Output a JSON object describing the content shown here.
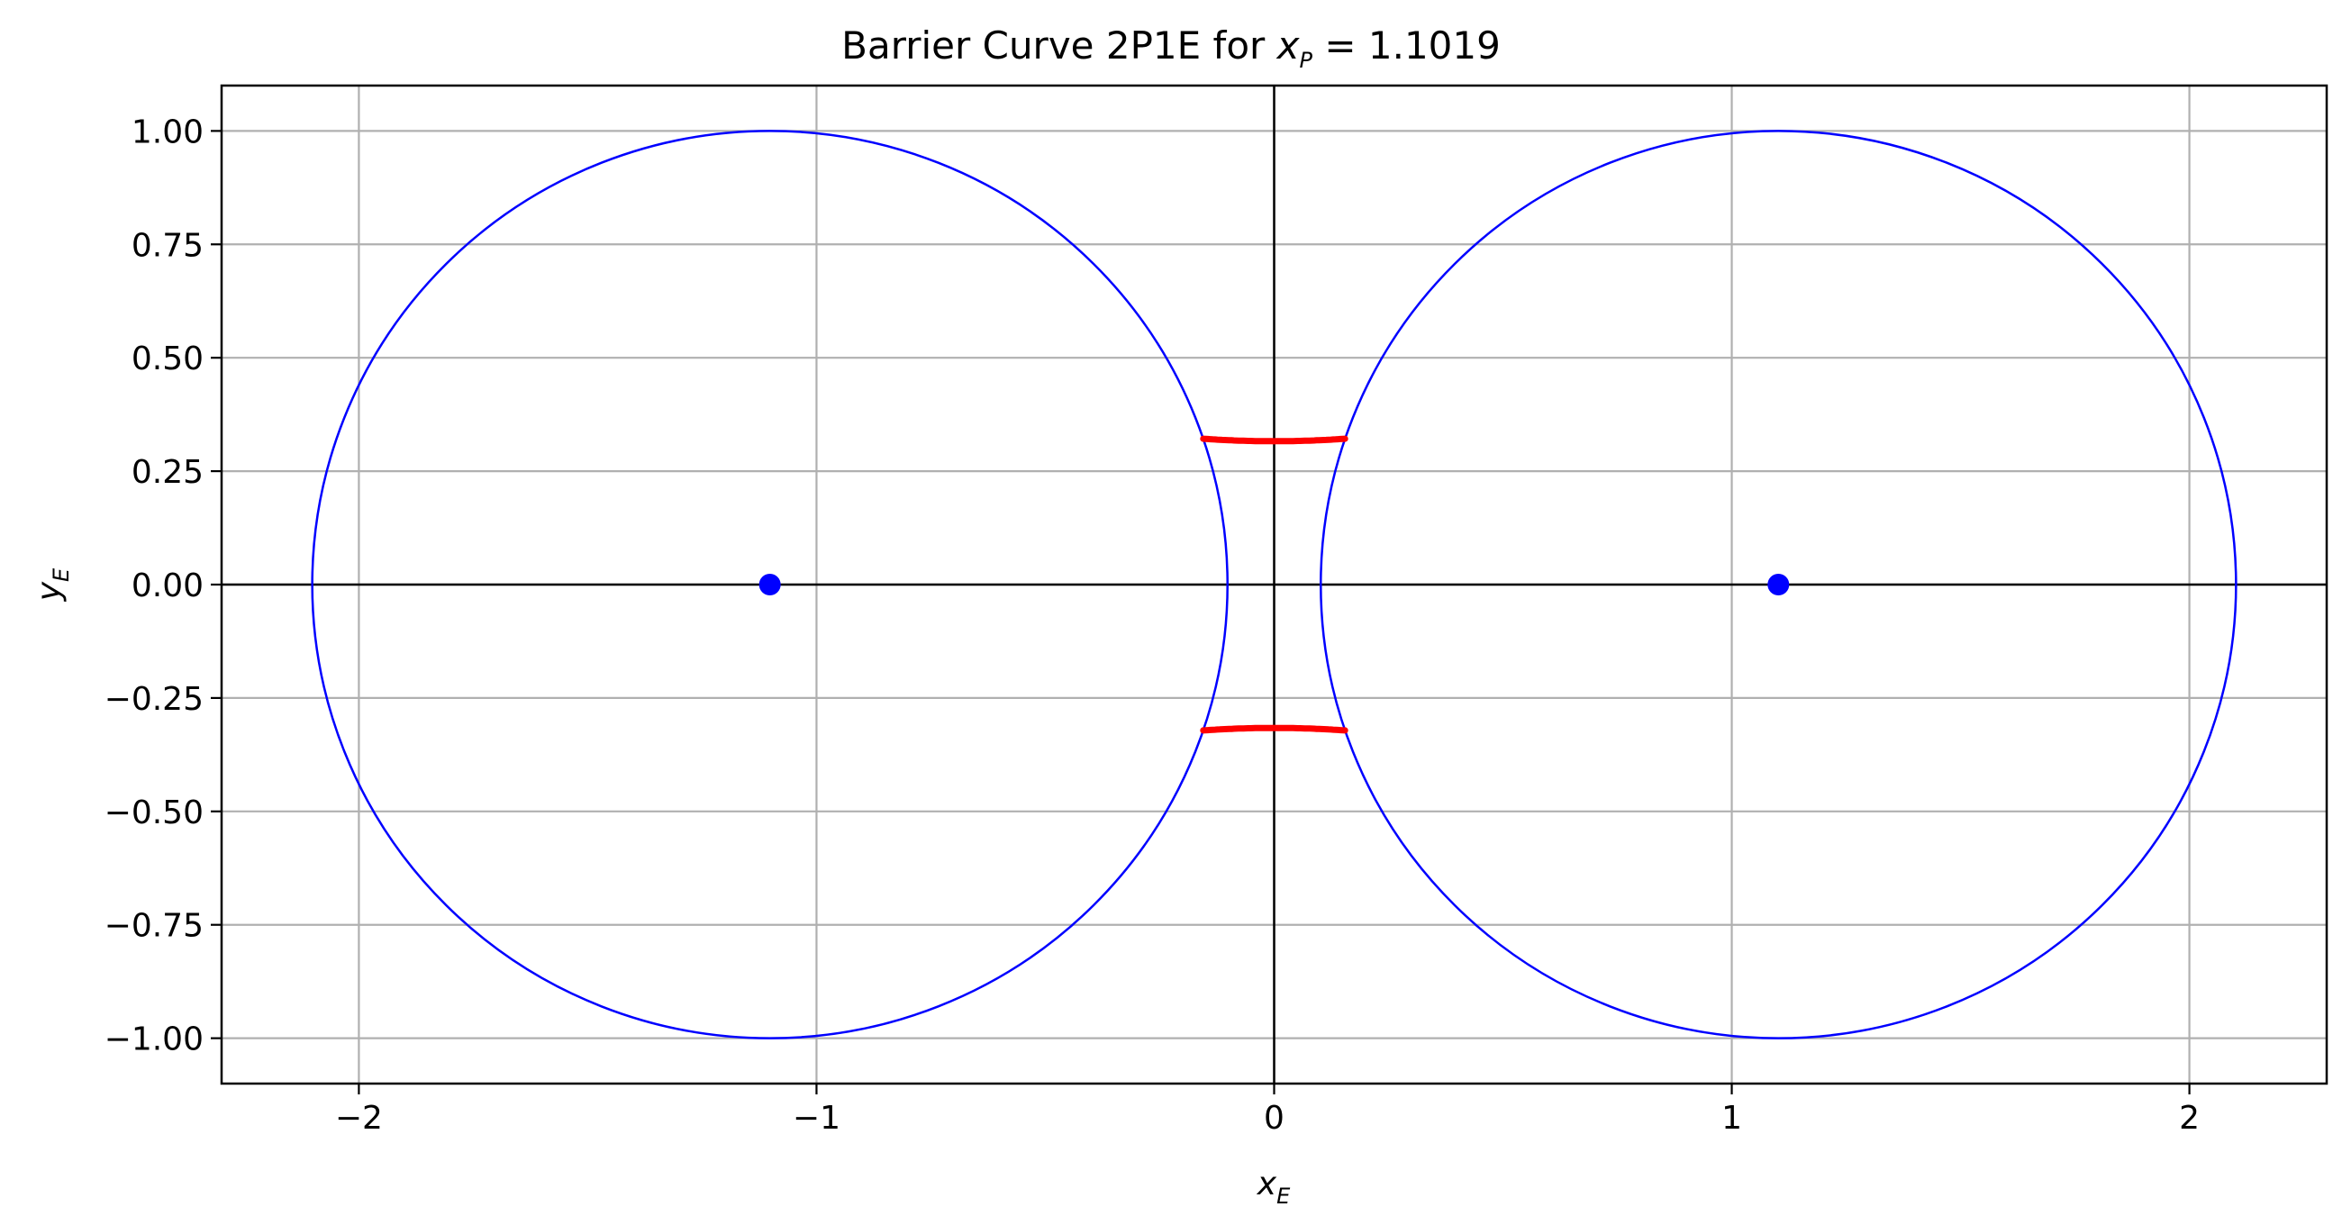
{
  "chart_data": {
    "type": "scatter",
    "title": {
      "prefix": "Barrier Curve 2P1E for ",
      "var": "x",
      "var_sub": "P",
      "suffix": " = 1.1019"
    },
    "xlabel": {
      "var": "x",
      "sub": "E"
    },
    "ylabel": {
      "var": "y",
      "sub": "E"
    },
    "xlim": [
      -2.3,
      2.3
    ],
    "ylim": [
      -1.1,
      1.1
    ],
    "x_ticks": [
      -2,
      -1,
      0,
      1,
      2
    ],
    "x_tick_labels": [
      "−2",
      "−1",
      "0",
      "1",
      "2"
    ],
    "y_ticks": [
      1.0,
      0.75,
      0.5,
      0.25,
      0.0,
      -0.25,
      -0.5,
      -0.75,
      -1.0
    ],
    "y_tick_labels": [
      "1.00",
      "0.75",
      "0.50",
      "0.25",
      "0.00",
      "−0.25",
      "−0.50",
      "−0.75",
      "−1.00"
    ],
    "grid": true,
    "x_p": 1.1019,
    "pursuers": [
      {
        "x": -1.1019,
        "y": 0,
        "radius": 1.0
      },
      {
        "x": 1.1019,
        "y": 0,
        "radius": 1.0
      }
    ],
    "barrier_arcs": [
      {
        "y_center": 0.316,
        "direction": 1,
        "x_range": [
          -0.155,
          0.155
        ]
      },
      {
        "y_center": -0.316,
        "direction": -1,
        "x_range": [
          -0.155,
          0.155
        ]
      }
    ],
    "colors": {
      "circle": "#0000ff",
      "pursuer": "#0000ff",
      "barrier": "#ff0000",
      "axis_lines": "#000000",
      "grid": "#b0b0b0"
    }
  }
}
